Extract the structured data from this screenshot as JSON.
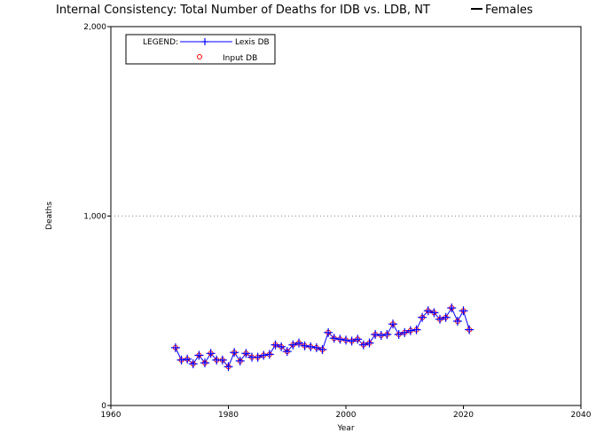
{
  "chart_data": {
    "type": "line",
    "title": "Internal Consistency: Total Number of Deaths for IDB vs. LDB, NT",
    "title_suffix": "Females",
    "xlabel": "Year",
    "ylabel": "Deaths",
    "xlim": [
      1960,
      2040
    ],
    "ylim": [
      0,
      2000
    ],
    "x_ticks": [
      1960,
      1980,
      2000,
      2020,
      2040
    ],
    "x_tick_labels": [
      "1960",
      "1980",
      "2000",
      "2020",
      "2040"
    ],
    "y_ticks": [
      0,
      1000,
      2000
    ],
    "y_tick_labels": [
      "0",
      "1,000",
      "2,000"
    ],
    "grid": "horizontal-dotted",
    "legend": {
      "title": "LEGEND:",
      "placement": "top-left",
      "entries": [
        "Lexis DB",
        "Input DB"
      ]
    },
    "colors": {
      "lexis_line": "#0000ff",
      "lexis_marker": "#0000ff",
      "input_marker": "#ff0000",
      "title_line": "#000000"
    },
    "x": [
      1971,
      1972,
      1973,
      1974,
      1975,
      1976,
      1977,
      1978,
      1979,
      1980,
      1981,
      1982,
      1983,
      1984,
      1985,
      1986,
      1987,
      1988,
      1989,
      1990,
      1991,
      1992,
      1993,
      1994,
      1995,
      1996,
      1997,
      1998,
      1999,
      2000,
      2001,
      2002,
      2003,
      2004,
      2005,
      2006,
      2007,
      2008,
      2009,
      2010,
      2011,
      2012,
      2013,
      2014,
      2015,
      2016,
      2017,
      2018,
      2019,
      2020,
      2021
    ],
    "series": [
      {
        "name": "Lexis DB",
        "marker": "plus",
        "values": [
          305,
          240,
          245,
          220,
          265,
          225,
          275,
          240,
          240,
          205,
          280,
          235,
          275,
          255,
          255,
          265,
          270,
          320,
          310,
          285,
          320,
          330,
          315,
          310,
          305,
          295,
          385,
          355,
          350,
          345,
          340,
          350,
          320,
          330,
          375,
          370,
          375,
          430,
          375,
          385,
          395,
          400,
          465,
          500,
          490,
          455,
          465,
          515,
          445,
          500,
          400
        ]
      },
      {
        "name": "Input DB",
        "marker": "circle",
        "values": [
          305,
          240,
          245,
          220,
          265,
          225,
          275,
          240,
          240,
          205,
          280,
          235,
          275,
          255,
          255,
          265,
          270,
          320,
          310,
          285,
          320,
          330,
          315,
          310,
          305,
          295,
          385,
          355,
          350,
          345,
          340,
          350,
          320,
          330,
          375,
          370,
          375,
          430,
          375,
          385,
          395,
          400,
          465,
          500,
          490,
          455,
          465,
          515,
          445,
          500,
          400
        ]
      }
    ]
  }
}
